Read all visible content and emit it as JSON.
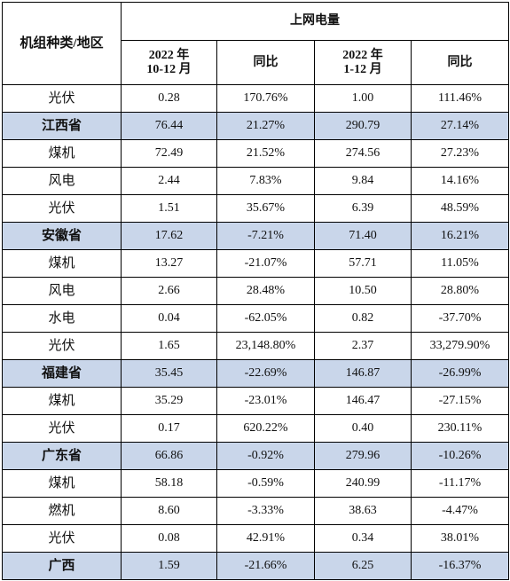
{
  "header": {
    "corner": "机组种类/地区",
    "group": "上网电量",
    "col1_line1": "2022 年",
    "col1_line2": "10-12 月",
    "col2": "同比",
    "col3_line1": "2022 年",
    "col3_line2": "1-12 月",
    "col4": "同比"
  },
  "rows": [
    {
      "label": "光伏",
      "q4": "0.28",
      "q4_yoy": "170.76%",
      "full": "1.00",
      "full_yoy": "111.46%",
      "province": false
    },
    {
      "label": "江西省",
      "q4": "76.44",
      "q4_yoy": "21.27%",
      "full": "290.79",
      "full_yoy": "27.14%",
      "province": true
    },
    {
      "label": "煤机",
      "q4": "72.49",
      "q4_yoy": "21.52%",
      "full": "274.56",
      "full_yoy": "27.23%",
      "province": false
    },
    {
      "label": "风电",
      "q4": "2.44",
      "q4_yoy": "7.83%",
      "full": "9.84",
      "full_yoy": "14.16%",
      "province": false
    },
    {
      "label": "光伏",
      "q4": "1.51",
      "q4_yoy": "35.67%",
      "full": "6.39",
      "full_yoy": "48.59%",
      "province": false
    },
    {
      "label": "安徽省",
      "q4": "17.62",
      "q4_yoy": "-7.21%",
      "full": "71.40",
      "full_yoy": "16.21%",
      "province": true
    },
    {
      "label": "煤机",
      "q4": "13.27",
      "q4_yoy": "-21.07%",
      "full": "57.71",
      "full_yoy": "11.05%",
      "province": false
    },
    {
      "label": "风电",
      "q4": "2.66",
      "q4_yoy": "28.48%",
      "full": "10.50",
      "full_yoy": "28.80%",
      "province": false
    },
    {
      "label": "水电",
      "q4": "0.04",
      "q4_yoy": "-62.05%",
      "full": "0.82",
      "full_yoy": "-37.70%",
      "province": false
    },
    {
      "label": "光伏",
      "q4": "1.65",
      "q4_yoy": "23,148.80%",
      "full": "2.37",
      "full_yoy": "33,279.90%",
      "province": false
    },
    {
      "label": "福建省",
      "q4": "35.45",
      "q4_yoy": "-22.69%",
      "full": "146.87",
      "full_yoy": "-26.99%",
      "province": true
    },
    {
      "label": "煤机",
      "q4": "35.29",
      "q4_yoy": "-23.01%",
      "full": "146.47",
      "full_yoy": "-27.15%",
      "province": false
    },
    {
      "label": "光伏",
      "q4": "0.17",
      "q4_yoy": "620.22%",
      "full": "0.40",
      "full_yoy": "230.11%",
      "province": false
    },
    {
      "label": "广东省",
      "q4": "66.86",
      "q4_yoy": "-0.92%",
      "full": "279.96",
      "full_yoy": "-10.26%",
      "province": true
    },
    {
      "label": "煤机",
      "q4": "58.18",
      "q4_yoy": "-0.59%",
      "full": "240.99",
      "full_yoy": "-11.17%",
      "province": false
    },
    {
      "label": "燃机",
      "q4": "8.60",
      "q4_yoy": "-3.33%",
      "full": "38.63",
      "full_yoy": "-4.47%",
      "province": false
    },
    {
      "label": "光伏",
      "q4": "0.08",
      "q4_yoy": "42.91%",
      "full": "0.34",
      "full_yoy": "38.01%",
      "province": false
    },
    {
      "label": "广西",
      "q4": "1.59",
      "q4_yoy": "-21.66%",
      "full": "6.25",
      "full_yoy": "-16.37%",
      "province": true
    }
  ],
  "colors": {
    "province_bg": "#c9d6ea",
    "border": "#000000"
  }
}
